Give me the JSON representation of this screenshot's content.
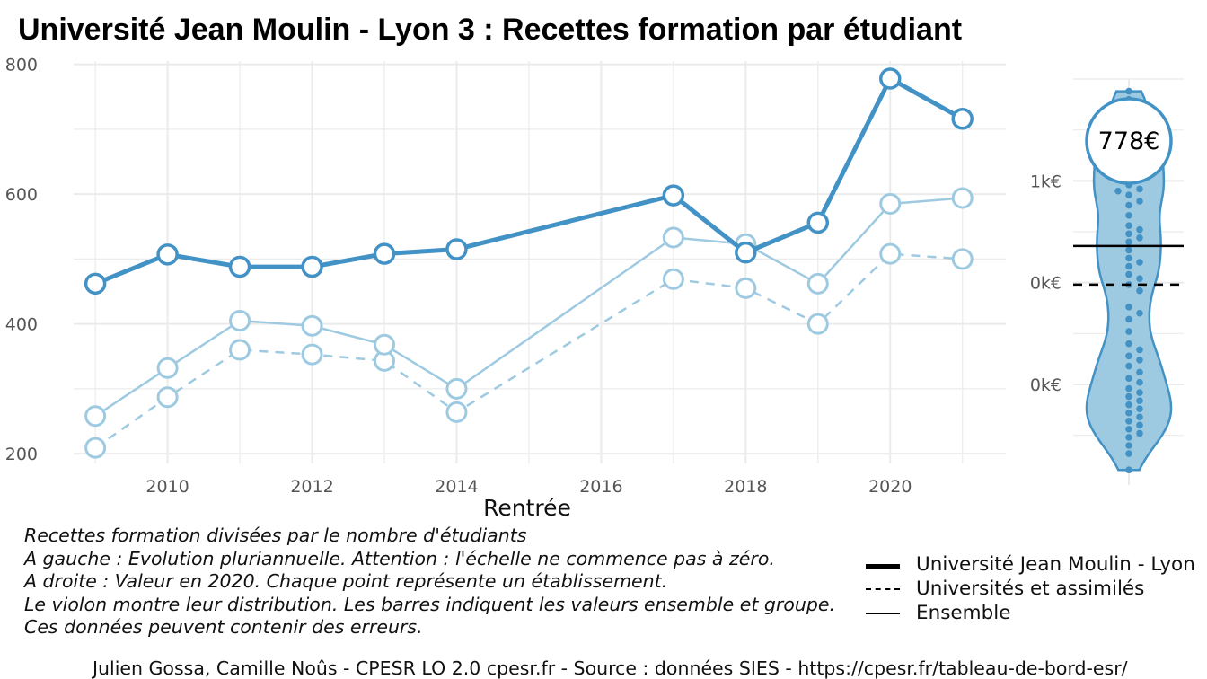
{
  "title": "Université Jean Moulin - Lyon 3  :  Recettes formation par étudiant",
  "chart_data": [
    {
      "type": "line",
      "xlabel": "Rentrée",
      "ylabel": "",
      "xlim": [
        2008.7,
        2021.6
      ],
      "ylim": [
        185,
        805
      ],
      "x_ticks": [
        "2010",
        "2012",
        "2014",
        "2016",
        "2018",
        "2020"
      ],
      "y_ticks": [
        "200",
        "400",
        "600",
        "800"
      ],
      "grid": true,
      "series": [
        {
          "name": "Université Jean Moulin - Lyon",
          "style": "thick-solid",
          "color": "#4292c6",
          "points": [
            [
              2009,
              462
            ],
            [
              2010,
              507
            ],
            [
              2011,
              488
            ],
            [
              2012,
              488
            ],
            [
              2013,
              508
            ],
            [
              2014,
              515
            ],
            [
              2017,
              598
            ],
            [
              2018,
              510
            ],
            [
              2019,
              556
            ],
            [
              2020,
              778
            ],
            [
              2021,
              716
            ]
          ]
        },
        {
          "name": "Ensemble",
          "style": "thin-solid",
          "color": "#9ecae1",
          "points": [
            [
              2009,
              258
            ],
            [
              2010,
              332
            ],
            [
              2011,
              405
            ],
            [
              2012,
              397
            ],
            [
              2013,
              368
            ],
            [
              2014,
              300
            ],
            [
              2017,
              533
            ],
            [
              2018,
              523
            ],
            [
              2019,
              462
            ],
            [
              2020,
              585
            ],
            [
              2021,
              594
            ]
          ]
        },
        {
          "name": "Universités et assimilés",
          "style": "dashed",
          "color": "#9ecae1",
          "points": [
            [
              2009,
              209
            ],
            [
              2010,
              287
            ],
            [
              2011,
              360
            ],
            [
              2012,
              353
            ],
            [
              2013,
              343
            ],
            [
              2014,
              264
            ],
            [
              2017,
              469
            ],
            [
              2018,
              455
            ],
            [
              2019,
              400
            ],
            [
              2020,
              508
            ],
            [
              2021,
              500
            ]
          ]
        }
      ]
    },
    {
      "type": "violin",
      "y_ticks": [
        "1k€",
        "0k€",
        "0k€"
      ],
      "highlight_label": "778€",
      "ensemble_line": 0.68,
      "group_line": 0.49,
      "ylim": [
        -0.45,
        1.5
      ],
      "points": [
        1.44,
        1.4,
        1.36,
        1.3,
        1.26,
        1.22,
        1.2,
        1.18,
        1.16,
        1.12,
        1.1,
        1.07,
        1.05,
        1.02,
        0.98,
        0.96,
        0.95,
        0.93,
        0.9,
        0.88,
        0.83,
        0.78,
        0.76,
        0.74,
        0.72,
        0.7,
        0.66,
        0.62,
        0.6,
        0.58,
        0.54,
        0.52,
        0.49,
        0.46,
        0.38,
        0.35,
        0.32,
        0.26,
        0.2,
        0.17,
        0.14,
        0.12,
        0.09,
        0.06,
        0.03,
        0.01,
        -0.02,
        -0.04,
        -0.06,
        -0.08,
        -0.1,
        -0.12,
        -0.14,
        -0.16,
        -0.18,
        -0.2,
        -0.22,
        -0.24,
        -0.26,
        -0.3,
        -0.34,
        -0.42
      ]
    }
  ],
  "legend": [
    {
      "label": "Université Jean Moulin - Lyon",
      "style": "thick"
    },
    {
      "label": "Universités et assimilés",
      "style": "dashed"
    },
    {
      "label": "Ensemble",
      "style": "thin"
    }
  ],
  "notes": [
    "Recettes formation divisées par le nombre d'étudiants",
    "A gauche : Evolution pluriannuelle. Attention : l'échelle ne commence pas à zéro.",
    "A droite : Valeur en 2020. Chaque point représente un établissement.",
    "Le violon montre leur distribution. Les barres indiquent les valeurs ensemble et groupe.",
    "Ces données peuvent contenir des erreurs."
  ],
  "credit": "Julien Gossa, Camille Noûs - CPESR LO 2.0 cpesr.fr - Source : données SIES - https://cpesr.fr/tableau-de-bord-esr/"
}
